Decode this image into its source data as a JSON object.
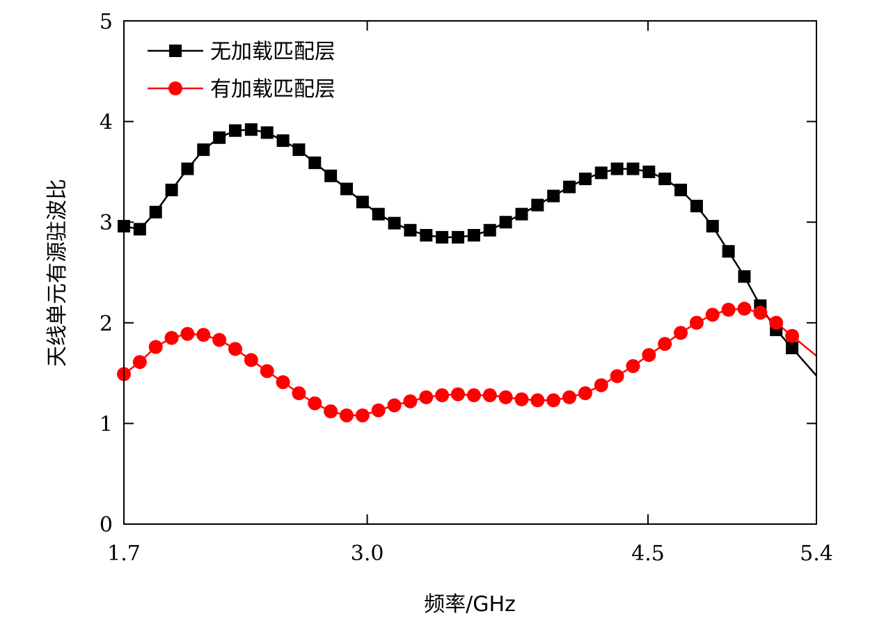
{
  "chart_data": {
    "type": "line",
    "title": "",
    "xlabel": "频率/GHz",
    "ylabel": "天线单元有源驻波比",
    "xlim": [
      1.7,
      5.4
    ],
    "ylim": [
      0,
      5
    ],
    "x_ticks": [
      1.7,
      3.0,
      4.5,
      5.4
    ],
    "x_tick_labels": [
      "1.7",
      "3.0",
      "4.5",
      "5.4"
    ],
    "y_ticks": [
      0,
      1,
      2,
      3,
      4,
      5
    ],
    "y_tick_labels": [
      "0",
      "1",
      "2",
      "3",
      "4",
      "5"
    ],
    "grid": false,
    "legend_position": "top-left",
    "series": [
      {
        "name": "无加载匹配层",
        "color": "#000000",
        "marker": "square",
        "x": [
          1.7,
          1.785,
          1.87,
          1.955,
          2.04,
          2.125,
          2.21,
          2.295,
          2.38,
          2.465,
          2.55,
          2.635,
          2.72,
          2.805,
          2.89,
          2.975,
          3.06,
          3.145,
          3.23,
          3.315,
          3.4,
          3.485,
          3.57,
          3.655,
          3.74,
          3.825,
          3.91,
          3.995,
          4.08,
          4.165,
          4.25,
          4.335,
          4.42,
          4.505,
          4.59,
          4.675,
          4.76,
          4.845,
          4.93,
          5.015,
          5.1,
          5.185,
          5.27
        ],
        "values": [
          2.96,
          2.93,
          3.1,
          3.32,
          3.53,
          3.72,
          3.84,
          3.91,
          3.92,
          3.89,
          3.81,
          3.72,
          3.59,
          3.46,
          3.33,
          3.2,
          3.08,
          2.99,
          2.92,
          2.87,
          2.85,
          2.85,
          2.87,
          2.92,
          3.0,
          3.08,
          3.17,
          3.26,
          3.35,
          3.43,
          3.49,
          3.53,
          3.53,
          3.5,
          3.43,
          3.32,
          3.16,
          2.96,
          2.71,
          2.46,
          2.17,
          1.93,
          1.75
        ]
      },
      {
        "name": "有加载匹配层",
        "color": "#ff0000",
        "marker": "circle",
        "x": [
          1.7,
          1.785,
          1.87,
          1.955,
          2.04,
          2.125,
          2.21,
          2.295,
          2.38,
          2.465,
          2.55,
          2.635,
          2.72,
          2.805,
          2.89,
          2.975,
          3.06,
          3.145,
          3.23,
          3.315,
          3.4,
          3.485,
          3.57,
          3.655,
          3.74,
          3.825,
          3.91,
          3.995,
          4.08,
          4.165,
          4.25,
          4.335,
          4.42,
          4.505,
          4.59,
          4.675,
          4.76,
          4.845,
          4.93,
          5.015,
          5.1,
          5.185,
          5.27
        ],
        "values": [
          1.49,
          1.61,
          1.76,
          1.85,
          1.89,
          1.88,
          1.83,
          1.74,
          1.63,
          1.52,
          1.41,
          1.3,
          1.2,
          1.12,
          1.08,
          1.08,
          1.13,
          1.18,
          1.22,
          1.26,
          1.28,
          1.29,
          1.28,
          1.28,
          1.26,
          1.24,
          1.23,
          1.23,
          1.26,
          1.3,
          1.38,
          1.47,
          1.57,
          1.68,
          1.79,
          1.9,
          2.0,
          2.08,
          2.13,
          2.14,
          2.1,
          2.0,
          1.87
        ]
      }
    ]
  }
}
